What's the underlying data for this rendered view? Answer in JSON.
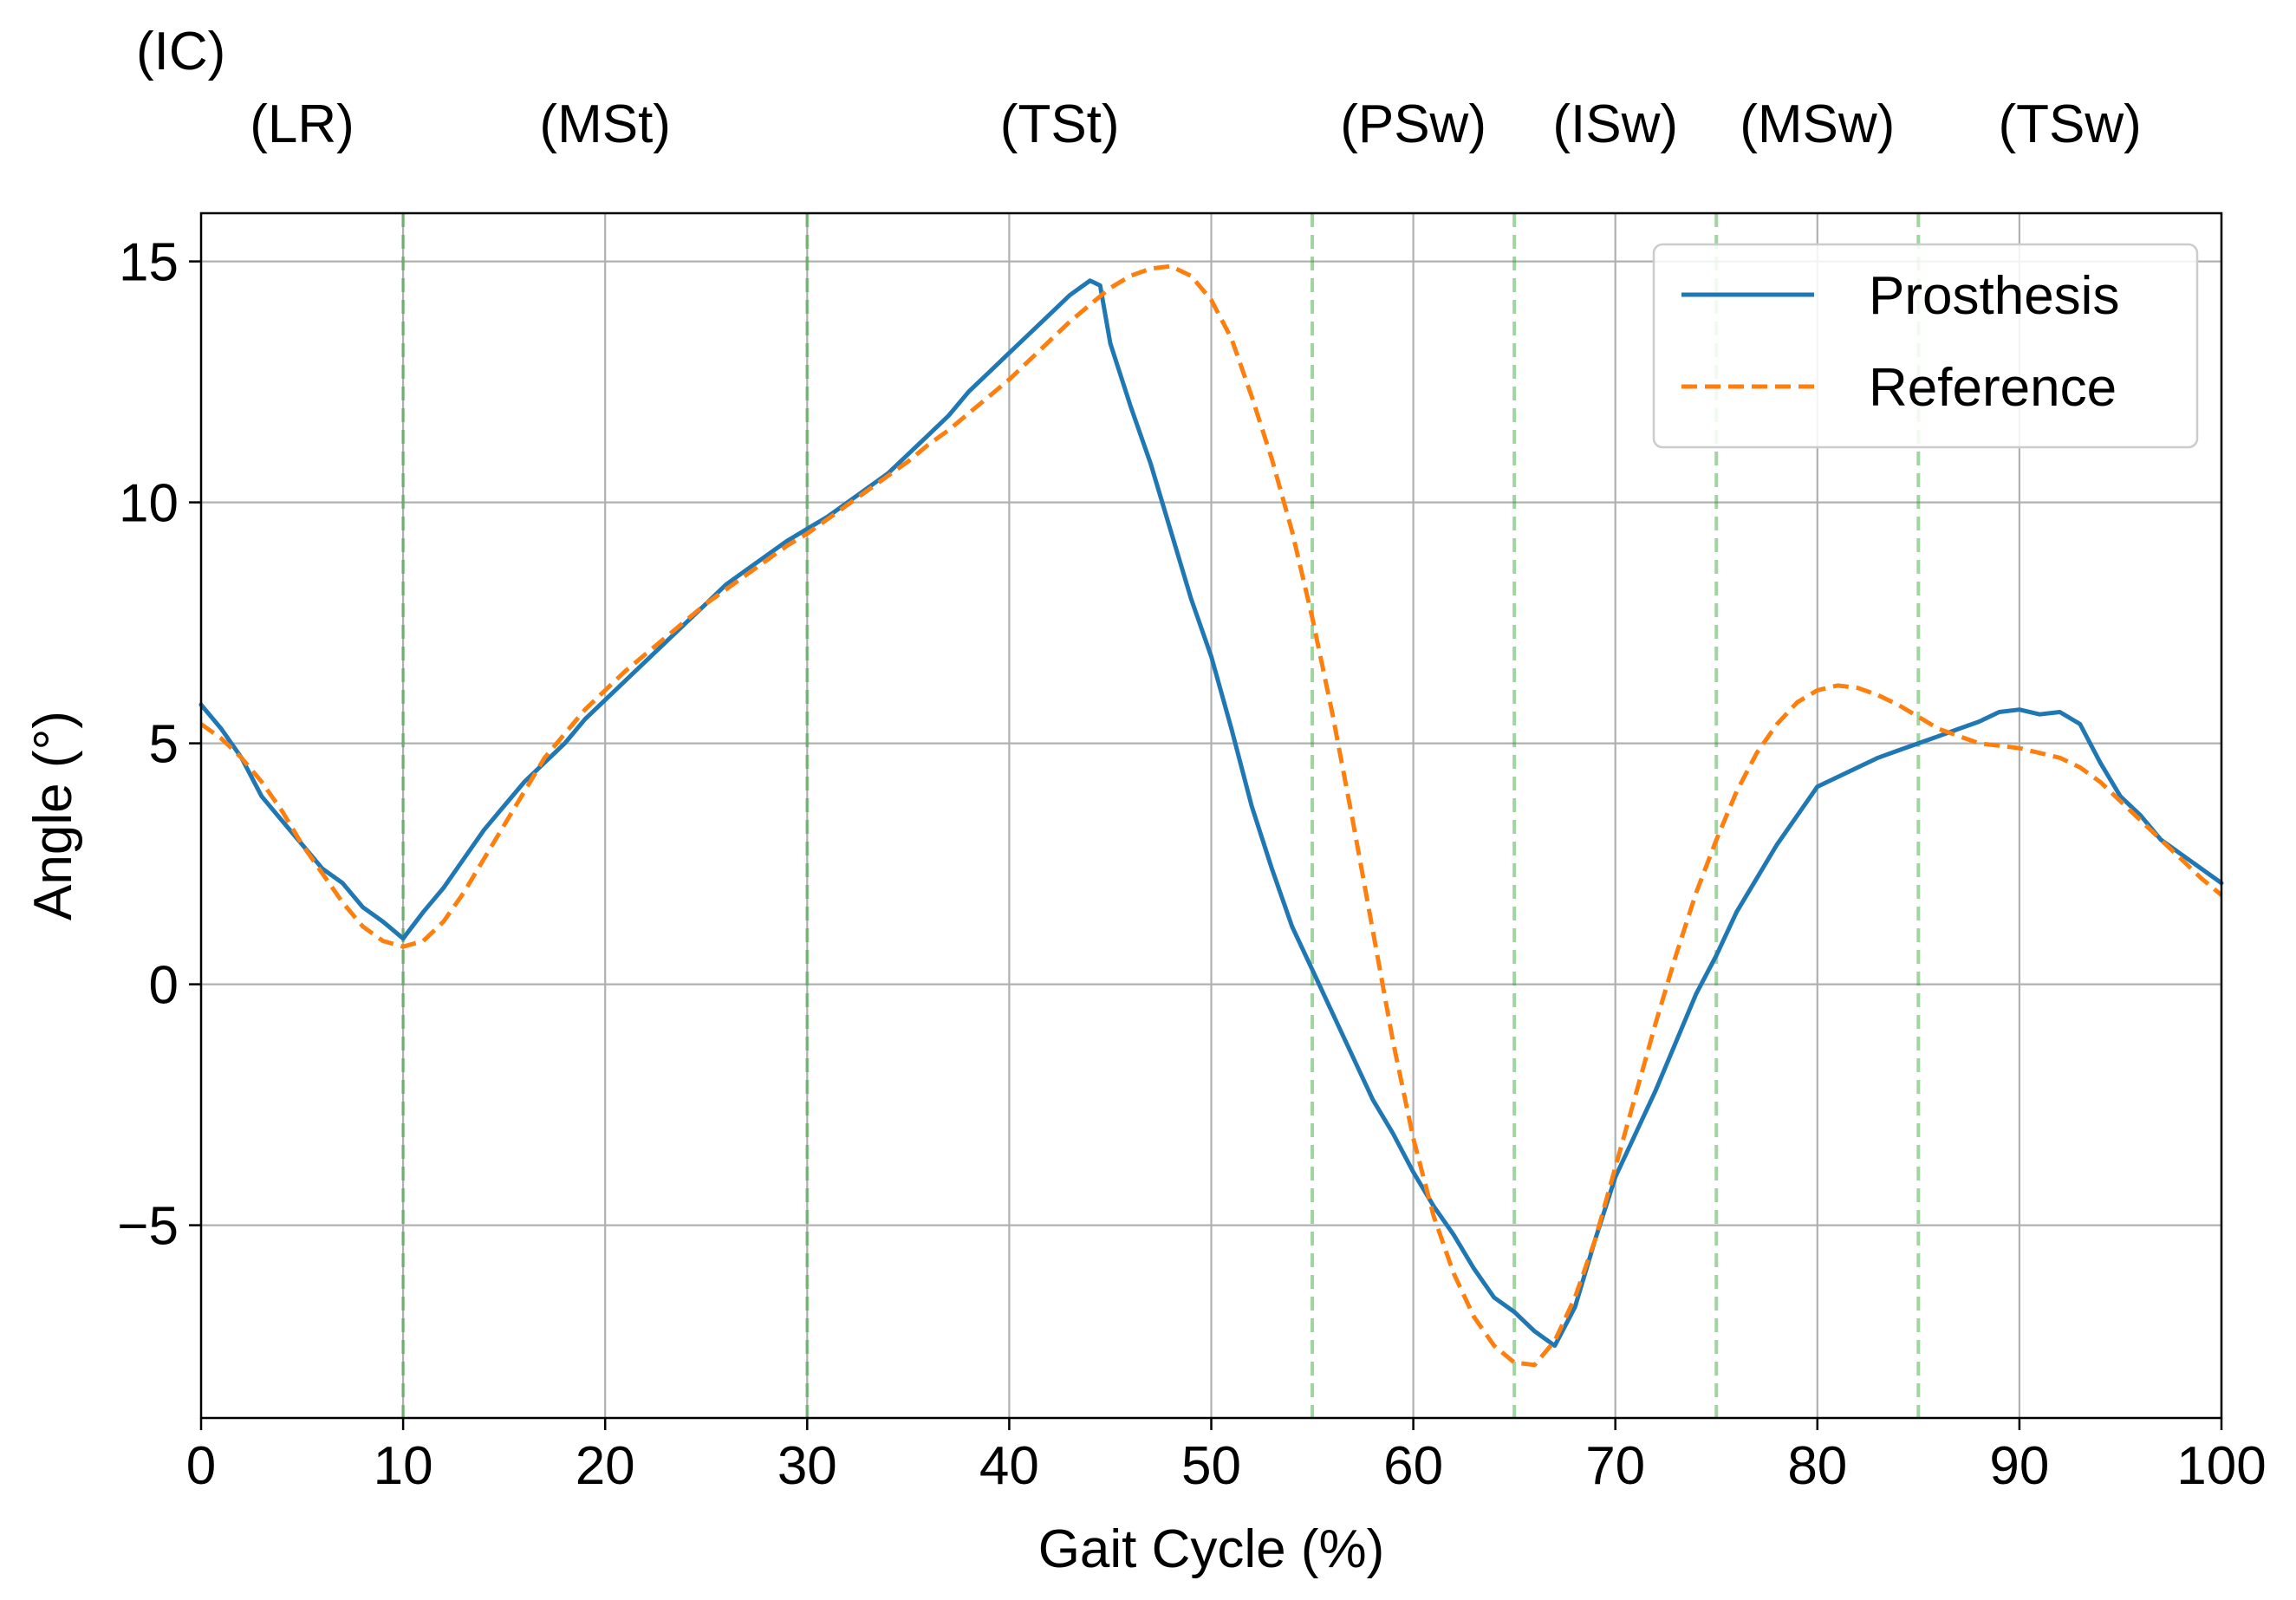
{
  "chart_data": {
    "type": "line",
    "title": "",
    "xlabel": "Gait Cycle (%)",
    "ylabel": "Angle (°)",
    "xlim": [
      0,
      100
    ],
    "ylim": [
      -9,
      16
    ],
    "x_ticks": [
      0,
      10,
      20,
      30,
      40,
      50,
      60,
      70,
      80,
      90,
      100
    ],
    "y_ticks": [
      -5,
      0,
      5,
      10,
      15
    ],
    "y_tick_labels": [
      "−5",
      "0",
      "5",
      "10",
      "15"
    ],
    "grid": true,
    "legend_position": "top-right",
    "phase_lines": [
      10,
      30,
      55,
      65,
      75,
      85
    ],
    "phase_labels": [
      {
        "label": "(IC)",
        "x": -1.0,
        "row": 1
      },
      {
        "label": "(LR)",
        "x": 5.0,
        "row": 2
      },
      {
        "label": "(MSt)",
        "x": 20.0,
        "row": 2
      },
      {
        "label": "(TSt)",
        "x": 42.5,
        "row": 2
      },
      {
        "label": "(PSw)",
        "x": 60.0,
        "row": 2
      },
      {
        "label": "(ISw)",
        "x": 70.0,
        "row": 2
      },
      {
        "label": "(MSw)",
        "x": 80.0,
        "row": 2
      },
      {
        "label": "(TSw)",
        "x": 92.5,
        "row": 2
      }
    ],
    "series": [
      {
        "name": "Prosthesis",
        "color": "#1f77b4",
        "style": "solid",
        "points": [
          [
            0,
            5.8
          ],
          [
            1,
            5.3
          ],
          [
            2,
            4.7
          ],
          [
            3,
            3.9
          ],
          [
            4,
            3.4
          ],
          [
            5,
            2.9
          ],
          [
            6,
            2.4
          ],
          [
            7,
            2.1
          ],
          [
            8,
            1.6
          ],
          [
            9,
            1.3
          ],
          [
            10,
            0.95
          ],
          [
            11,
            1.5
          ],
          [
            12,
            2.0
          ],
          [
            13,
            2.6
          ],
          [
            14,
            3.2
          ],
          [
            15,
            3.7
          ],
          [
            16,
            4.2
          ],
          [
            17,
            4.6
          ],
          [
            18,
            5.0
          ],
          [
            19,
            5.5
          ],
          [
            20,
            5.9
          ],
          [
            21,
            6.3
          ],
          [
            22,
            6.7
          ],
          [
            23,
            7.1
          ],
          [
            24,
            7.5
          ],
          [
            25,
            7.9
          ],
          [
            26,
            8.3
          ],
          [
            27,
            8.6
          ],
          [
            28,
            8.9
          ],
          [
            29,
            9.2
          ],
          [
            30,
            9.45
          ],
          [
            31,
            9.7
          ],
          [
            32,
            10.0
          ],
          [
            33,
            10.3
          ],
          [
            34,
            10.6
          ],
          [
            35,
            11.0
          ],
          [
            36,
            11.4
          ],
          [
            37,
            11.8
          ],
          [
            38,
            12.3
          ],
          [
            39,
            12.7
          ],
          [
            40,
            13.1
          ],
          [
            41,
            13.5
          ],
          [
            42,
            13.9
          ],
          [
            43,
            14.3
          ],
          [
            44,
            14.6
          ],
          [
            44.5,
            14.5
          ],
          [
            45,
            13.3
          ],
          [
            46,
            12.0
          ],
          [
            47,
            10.8
          ],
          [
            48,
            9.4
          ],
          [
            49,
            8.0
          ],
          [
            50,
            6.8
          ],
          [
            51,
            5.3
          ],
          [
            52,
            3.7
          ],
          [
            53,
            2.4
          ],
          [
            54,
            1.2
          ],
          [
            55,
            0.3
          ],
          [
            56,
            -0.6
          ],
          [
            57,
            -1.5
          ],
          [
            58,
            -2.4
          ],
          [
            59,
            -3.1
          ],
          [
            60,
            -3.9
          ],
          [
            61,
            -4.6
          ],
          [
            62,
            -5.2
          ],
          [
            63,
            -5.9
          ],
          [
            64,
            -6.5
          ],
          [
            65,
            -6.8
          ],
          [
            66,
            -7.2
          ],
          [
            67,
            -7.5
          ],
          [
            68,
            -6.7
          ],
          [
            69,
            -5.3
          ],
          [
            70,
            -4.0
          ],
          [
            71,
            -3.1
          ],
          [
            72,
            -2.2
          ],
          [
            73,
            -1.2
          ],
          [
            74,
            -0.2
          ],
          [
            75,
            0.6
          ],
          [
            76,
            1.5
          ],
          [
            77,
            2.2
          ],
          [
            78,
            2.9
          ],
          [
            79,
            3.5
          ],
          [
            80,
            4.1
          ],
          [
            81,
            4.3
          ],
          [
            82,
            4.5
          ],
          [
            83,
            4.7
          ],
          [
            84,
            4.85
          ],
          [
            85,
            5.0
          ],
          [
            86,
            5.15
          ],
          [
            87,
            5.3
          ],
          [
            88,
            5.45
          ],
          [
            89,
            5.65
          ],
          [
            90,
            5.7
          ],
          [
            91,
            5.6
          ],
          [
            92,
            5.65
          ],
          [
            93,
            5.4
          ],
          [
            94,
            4.6
          ],
          [
            95,
            3.9
          ],
          [
            96,
            3.5
          ],
          [
            97,
            3.0
          ],
          [
            98,
            2.7
          ],
          [
            99,
            2.4
          ],
          [
            100,
            2.1
          ]
        ]
      },
      {
        "name": "Reference",
        "color": "#ff7f0e",
        "style": "dashed",
        "points": [
          [
            0,
            5.4
          ],
          [
            1,
            5.1
          ],
          [
            2,
            4.7
          ],
          [
            3,
            4.2
          ],
          [
            4,
            3.6
          ],
          [
            5,
            2.9
          ],
          [
            6,
            2.3
          ],
          [
            7,
            1.7
          ],
          [
            8,
            1.2
          ],
          [
            9,
            0.9
          ],
          [
            10,
            0.78
          ],
          [
            11,
            0.9
          ],
          [
            12,
            1.3
          ],
          [
            13,
            1.9
          ],
          [
            14,
            2.6
          ],
          [
            15,
            3.3
          ],
          [
            16,
            4.0
          ],
          [
            17,
            4.7
          ],
          [
            18,
            5.2
          ],
          [
            19,
            5.7
          ],
          [
            20,
            6.1
          ],
          [
            21,
            6.5
          ],
          [
            22,
            6.85
          ],
          [
            23,
            7.2
          ],
          [
            24,
            7.55
          ],
          [
            25,
            7.9
          ],
          [
            26,
            8.2
          ],
          [
            27,
            8.5
          ],
          [
            28,
            8.8
          ],
          [
            29,
            9.1
          ],
          [
            30,
            9.35
          ],
          [
            31,
            9.65
          ],
          [
            32,
            9.95
          ],
          [
            33,
            10.25
          ],
          [
            34,
            10.55
          ],
          [
            35,
            10.85
          ],
          [
            36,
            11.2
          ],
          [
            37,
            11.5
          ],
          [
            38,
            11.85
          ],
          [
            39,
            12.2
          ],
          [
            40,
            12.55
          ],
          [
            41,
            12.95
          ],
          [
            42,
            13.35
          ],
          [
            43,
            13.75
          ],
          [
            44,
            14.1
          ],
          [
            45,
            14.45
          ],
          [
            46,
            14.7
          ],
          [
            47,
            14.85
          ],
          [
            48,
            14.9
          ],
          [
            49,
            14.7
          ],
          [
            50,
            14.2
          ],
          [
            51,
            13.4
          ],
          [
            52,
            12.2
          ],
          [
            53,
            10.9
          ],
          [
            54,
            9.4
          ],
          [
            55,
            7.6
          ],
          [
            56,
            5.6
          ],
          [
            57,
            3.4
          ],
          [
            58,
            1.1
          ],
          [
            59,
            -1.2
          ],
          [
            60,
            -3.2
          ],
          [
            61,
            -4.8
          ],
          [
            62,
            -6.0
          ],
          [
            63,
            -6.9
          ],
          [
            64,
            -7.5
          ],
          [
            65,
            -7.85
          ],
          [
            66,
            -7.9
          ],
          [
            67,
            -7.4
          ],
          [
            68,
            -6.5
          ],
          [
            69,
            -5.3
          ],
          [
            70,
            -3.8
          ],
          [
            71,
            -2.3
          ],
          [
            72,
            -0.8
          ],
          [
            73,
            0.6
          ],
          [
            74,
            1.9
          ],
          [
            75,
            3.0
          ],
          [
            76,
            4.0
          ],
          [
            77,
            4.8
          ],
          [
            78,
            5.4
          ],
          [
            79,
            5.85
          ],
          [
            80,
            6.1
          ],
          [
            81,
            6.2
          ],
          [
            82,
            6.15
          ],
          [
            83,
            6.0
          ],
          [
            84,
            5.8
          ],
          [
            85,
            5.55
          ],
          [
            86,
            5.3
          ],
          [
            87,
            5.15
          ],
          [
            88,
            5.0
          ],
          [
            89,
            4.95
          ],
          [
            90,
            4.9
          ],
          [
            91,
            4.8
          ],
          [
            92,
            4.7
          ],
          [
            93,
            4.5
          ],
          [
            94,
            4.2
          ],
          [
            95,
            3.8
          ],
          [
            96,
            3.4
          ],
          [
            97,
            3.0
          ],
          [
            98,
            2.6
          ],
          [
            99,
            2.2
          ],
          [
            100,
            1.85
          ]
        ]
      }
    ]
  }
}
